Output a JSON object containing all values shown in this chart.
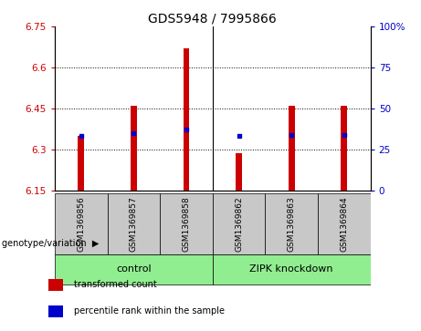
{
  "title": "GDS5948 / 7995866",
  "samples": [
    "GSM1369856",
    "GSM1369857",
    "GSM1369858",
    "GSM1369862",
    "GSM1369863",
    "GSM1369864"
  ],
  "transformed_counts": [
    6.35,
    6.46,
    6.67,
    6.285,
    6.46,
    6.46
  ],
  "percentile_ranks": [
    33,
    35,
    37,
    33,
    34,
    34
  ],
  "ylim": [
    6.15,
    6.75
  ],
  "yticks": [
    6.15,
    6.3,
    6.45,
    6.6,
    6.75
  ],
  "ytick_labels": [
    "6.15",
    "6.3",
    "6.45",
    "6.6",
    "6.75"
  ],
  "y2ticks": [
    0,
    25,
    50,
    75,
    100
  ],
  "y2tick_labels": [
    "0",
    "25",
    "50",
    "75",
    "100%"
  ],
  "bar_color": "#CC0000",
  "dot_color": "#0000CC",
  "bar_width": 0.12,
  "bg_color": "#FFFFFF",
  "plot_bg_color": "#FFFFFF",
  "sample_bg_color": "#C8C8C8",
  "group_bg_color": "#90EE90",
  "genotype_label": "genotype/variation",
  "group_names": [
    "control",
    "ZIPK knockdown"
  ],
  "group_ranges": [
    [
      0,
      2
    ],
    [
      3,
      5
    ]
  ],
  "legend_items": [
    {
      "color": "#CC0000",
      "label": "transformed count"
    },
    {
      "color": "#0000CC",
      "label": "percentile rank within the sample"
    }
  ],
  "base_value": 6.15,
  "grid_yticks": [
    6.3,
    6.45,
    6.6
  ],
  "title_fontsize": 10,
  "tick_fontsize": 7.5,
  "sample_fontsize": 6.5,
  "group_fontsize": 8,
  "legend_fontsize": 7
}
